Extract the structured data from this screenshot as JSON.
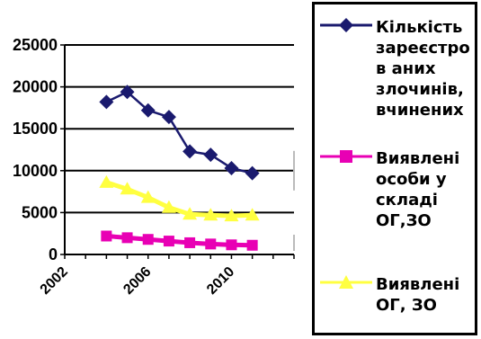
{
  "chart_data": {
    "type": "line",
    "x": [
      2004,
      2005,
      2006,
      2007,
      2008,
      2009,
      2010,
      2011
    ],
    "series": [
      {
        "name": "Кількість зареєстрованих злочинів, вчинених",
        "values": [
          18200,
          19400,
          17200,
          16400,
          12300,
          11900,
          10300,
          9700
        ],
        "color": "#1a1a6e",
        "marker": "diamond"
      },
      {
        "name": "Виявлені особи у складі ОГ,ЗО",
        "values": [
          2200,
          2000,
          1800,
          1600,
          1400,
          1250,
          1150,
          1100
        ],
        "color": "#e800b4",
        "marker": "square"
      },
      {
        "name": "Виявлені ОГ, ЗО",
        "values": [
          8600,
          7800,
          6800,
          5600,
          4800,
          4700,
          4600,
          4700
        ],
        "color": "#ffff40",
        "marker": "triangle"
      }
    ],
    "xticks": [
      2002,
      2006,
      2010
    ],
    "yticks": [
      0,
      5000,
      10000,
      15000,
      20000,
      25000
    ],
    "xlim": [
      2002,
      2013
    ],
    "ylim": [
      0,
      25000
    ],
    "grid": true,
    "legend": "right"
  },
  "legend": {
    "entries": [
      "Кількість зареєстров аних злочинів, вчинених",
      "Виявлені особи у складі ОГ,ЗО",
      "Виявлені ОГ, ЗО"
    ]
  }
}
